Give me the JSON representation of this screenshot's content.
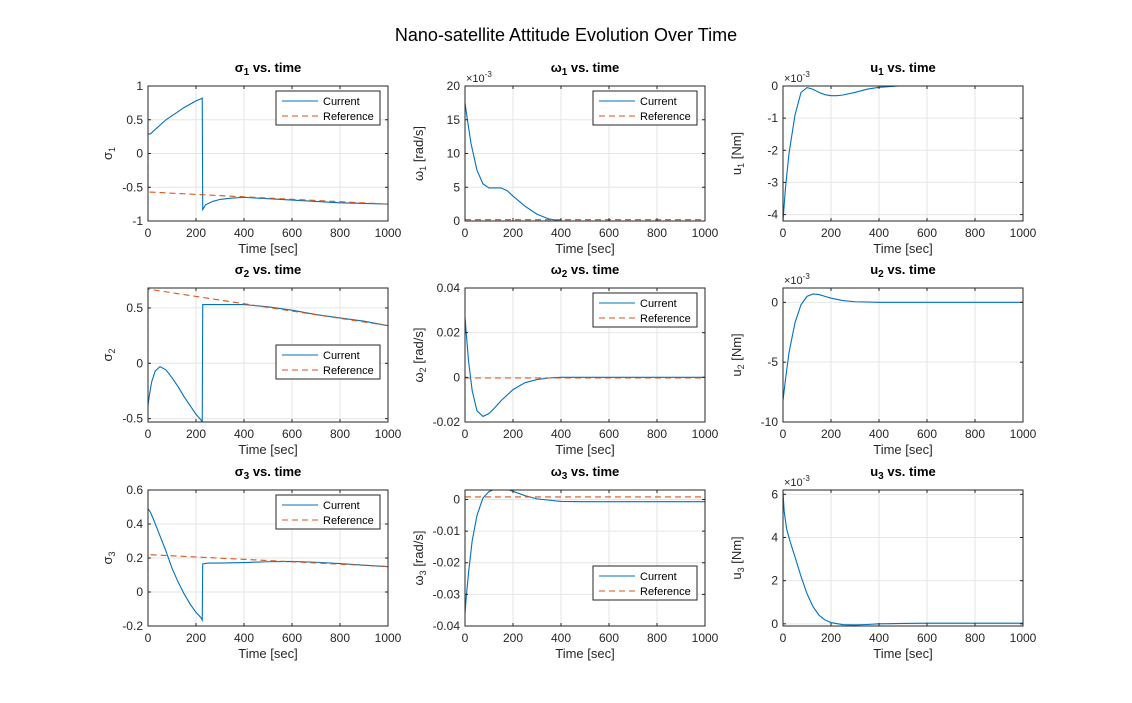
{
  "figure": {
    "title": "Nano-satellite Attitude Evolution Over Time"
  },
  "colors": {
    "current": "#0072BD",
    "reference": "#D95319",
    "grid": "#e6e6e6",
    "axis": "#262626"
  },
  "legend": {
    "current": "Current",
    "reference": "Reference"
  },
  "chart_data": [
    {
      "type": "line",
      "title": "σ_1 vs. time",
      "xlabel": "Time [sec]",
      "ylabel": "σ_1",
      "xlim": [
        0,
        1000
      ],
      "ylim": [
        -1,
        1
      ],
      "xticks": [
        0,
        200,
        400,
        600,
        800,
        1000
      ],
      "yticks": [
        -1,
        -0.5,
        0,
        0.5,
        1
      ],
      "ytick_labels": [
        "-1",
        "-0.5",
        "0",
        "0.5",
        "1"
      ],
      "exponent": "",
      "legend": "top-right",
      "series": [
        {
          "name": "Current",
          "x": [
            0,
            10,
            25,
            50,
            75,
            100,
            125,
            150,
            175,
            200,
            220,
            226,
            228,
            240,
            270,
            300,
            350,
            400,
            500,
            600,
            700,
            800,
            900,
            1000
          ],
          "y": [
            0.29,
            0.29,
            0.34,
            0.42,
            0.5,
            0.56,
            0.62,
            0.68,
            0.73,
            0.78,
            0.81,
            0.82,
            -0.83,
            -0.76,
            -0.71,
            -0.68,
            -0.66,
            -0.65,
            -0.67,
            -0.69,
            -0.71,
            -0.73,
            -0.74,
            -0.75
          ]
        },
        {
          "name": "Reference",
          "x": [
            0,
            0.1,
            1000
          ],
          "y": [
            0,
            -0.57,
            -0.75
          ]
        }
      ]
    },
    {
      "type": "line",
      "title": "ω_1 vs. time",
      "xlabel": "Time [sec]",
      "ylabel": "ω_1 [rad/s]",
      "xlim": [
        0,
        1000
      ],
      "ylim": [
        0,
        0.02
      ],
      "xticks": [
        0,
        200,
        400,
        600,
        800,
        1000
      ],
      "yticks": [
        0,
        0.005,
        0.01,
        0.015,
        0.02
      ],
      "ytick_labels": [
        "0",
        "5",
        "10",
        "15",
        "20"
      ],
      "exponent": "-3",
      "legend": "top-right",
      "series": [
        {
          "name": "Current",
          "x": [
            0,
            10,
            25,
            50,
            75,
            100,
            125,
            150,
            175,
            200,
            250,
            300,
            350,
            400,
            450,
            500,
            600,
            700,
            800,
            900,
            1000
          ],
          "y": [
            0.0175,
            0.015,
            0.0115,
            0.0075,
            0.0055,
            0.0049,
            0.0049,
            0.0049,
            0.0045,
            0.0037,
            0.0022,
            0.001,
            0.0003,
            0.0,
            0.0,
            0.0,
            0.0,
            0.0,
            0.0,
            0.0,
            0.0
          ]
        },
        {
          "name": "Reference",
          "x": [
            0,
            1000
          ],
          "y": [
            0.0002,
            0.0002
          ]
        }
      ]
    },
    {
      "type": "line",
      "title": "u_1 vs. time",
      "xlabel": "Time [sec]",
      "ylabel": "u_1 [Nm]",
      "xlim": [
        0,
        1000
      ],
      "ylim": [
        -0.0042,
        0
      ],
      "xticks": [
        0,
        200,
        400,
        600,
        800,
        1000
      ],
      "yticks": [
        -0.004,
        -0.003,
        -0.002,
        -0.001,
        0
      ],
      "ytick_labels": [
        "-4",
        "-3",
        "-2",
        "-1",
        "0"
      ],
      "exponent": "-3",
      "legend": "none",
      "series": [
        {
          "name": "Current",
          "x": [
            0,
            10,
            25,
            50,
            75,
            100,
            125,
            150,
            175,
            200,
            225,
            250,
            300,
            350,
            400,
            500,
            600,
            700,
            800,
            900,
            1000
          ],
          "y": [
            -0.0042,
            -0.0032,
            -0.0021,
            -0.0009,
            -0.0002,
            -5e-05,
            -0.0001,
            -0.0002,
            -0.00027,
            -0.0003,
            -0.0003,
            -0.00028,
            -0.0002,
            -0.0001,
            -4e-05,
            1e-05,
            0.0,
            0.0,
            0.0,
            0.0,
            0.0
          ]
        }
      ]
    },
    {
      "type": "line",
      "title": "σ_2 vs. time",
      "xlabel": "Time [sec]",
      "ylabel": "σ_2",
      "xlim": [
        0,
        1000
      ],
      "ylim": [
        -0.53,
        0.68
      ],
      "xticks": [
        0,
        200,
        400,
        600,
        800,
        1000
      ],
      "yticks": [
        -0.5,
        0,
        0.5
      ],
      "ytick_labels": [
        "-0.5",
        "0",
        "0.5"
      ],
      "exponent": "",
      "legend": "right",
      "series": [
        {
          "name": "Current",
          "x": [
            0,
            5,
            15,
            30,
            50,
            75,
            100,
            125,
            150,
            175,
            200,
            220,
            226,
            228,
            260,
            300,
            400,
            500,
            600,
            700,
            800,
            900,
            1000
          ],
          "y": [
            -0.38,
            -0.3,
            -0.17,
            -0.07,
            -0.03,
            -0.06,
            -0.13,
            -0.21,
            -0.3,
            -0.38,
            -0.46,
            -0.51,
            -0.53,
            0.53,
            0.53,
            0.53,
            0.53,
            0.51,
            0.48,
            0.44,
            0.41,
            0.38,
            0.34
          ]
        },
        {
          "name": "Reference",
          "x": [
            0,
            0.1,
            1000
          ],
          "y": [
            0,
            0.67,
            0.34
          ]
        }
      ]
    },
    {
      "type": "line",
      "title": "ω_2 vs. time",
      "xlabel": "Time [sec]",
      "ylabel": "ω_2 [rad/s]",
      "xlim": [
        0,
        1000
      ],
      "ylim": [
        -0.02,
        0.04
      ],
      "xticks": [
        0,
        200,
        400,
        600,
        800,
        1000
      ],
      "yticks": [
        -0.02,
        0,
        0.02,
        0.04
      ],
      "ytick_labels": [
        "-0.02",
        "0",
        "0.02",
        "0.04"
      ],
      "exponent": "",
      "legend": "top-right",
      "series": [
        {
          "name": "Current",
          "x": [
            0,
            5,
            15,
            30,
            50,
            75,
            100,
            125,
            150,
            200,
            250,
            300,
            350,
            400,
            500,
            600,
            700,
            800,
            900,
            1000
          ],
          "y": [
            0.027,
            0.02,
            0.007,
            -0.006,
            -0.015,
            -0.0175,
            -0.0162,
            -0.0135,
            -0.0105,
            -0.0055,
            -0.0024,
            -0.001,
            -0.0003,
            0.0,
            0.0,
            0.0,
            0.0,
            0.0,
            0.0,
            0.0
          ]
        },
        {
          "name": "Reference",
          "x": [
            0,
            1000
          ],
          "y": [
            -0.0003,
            -0.0003
          ]
        }
      ]
    },
    {
      "type": "line",
      "title": "u_2 vs. time",
      "xlabel": "Time [sec]",
      "ylabel": "u_2 [Nm]",
      "xlim": [
        0,
        1000
      ],
      "ylim": [
        -0.01,
        0.0012
      ],
      "xticks": [
        0,
        200,
        400,
        600,
        800,
        1000
      ],
      "yticks": [
        -0.01,
        -0.005,
        0
      ],
      "ytick_labels": [
        "-10",
        "-5",
        "0"
      ],
      "exponent": "-3",
      "legend": "none",
      "series": [
        {
          "name": "Current",
          "x": [
            0,
            10,
            25,
            50,
            75,
            100,
            125,
            150,
            175,
            200,
            250,
            300,
            400,
            500,
            600,
            700,
            800,
            900,
            1000
          ],
          "y": [
            -0.0082,
            -0.0065,
            -0.0042,
            -0.0017,
            -0.0002,
            0.0005,
            0.0007,
            0.00065,
            0.0005,
            0.00035,
            0.00015,
            5e-05,
            0.0,
            0.0,
            0.0,
            0.0,
            0.0,
            0.0,
            0.0
          ]
        }
      ]
    },
    {
      "type": "line",
      "title": "σ_3 vs. time",
      "xlabel": "Time [sec]",
      "ylabel": "σ_3",
      "xlim": [
        0,
        1000
      ],
      "ylim": [
        -0.2,
        0.6
      ],
      "xticks": [
        0,
        200,
        400,
        600,
        800,
        1000
      ],
      "yticks": [
        -0.2,
        0,
        0.2,
        0.4,
        0.6
      ],
      "ytick_labels": [
        "-0.2",
        "0",
        "0.2",
        "0.4",
        "0.6"
      ],
      "exponent": "",
      "legend": "top-right",
      "series": [
        {
          "name": "Current",
          "x": [
            0,
            10,
            25,
            50,
            75,
            100,
            125,
            150,
            175,
            200,
            220,
            226,
            228,
            250,
            300,
            400,
            500,
            600,
            700,
            800,
            900,
            1000
          ],
          "y": [
            0.49,
            0.47,
            0.42,
            0.33,
            0.24,
            0.14,
            0.06,
            -0.01,
            -0.07,
            -0.12,
            -0.15,
            -0.165,
            0.165,
            0.17,
            0.17,
            0.173,
            0.178,
            0.18,
            0.175,
            0.167,
            0.158,
            0.149
          ]
        },
        {
          "name": "Reference",
          "x": [
            0,
            0.1,
            1000
          ],
          "y": [
            0,
            0.22,
            0.15
          ]
        }
      ]
    },
    {
      "type": "line",
      "title": "ω_3 vs. time",
      "xlabel": "Time [sec]",
      "ylabel": "ω_3 [rad/s]",
      "xlim": [
        0,
        1000
      ],
      "ylim": [
        -0.04,
        0.003
      ],
      "xticks": [
        0,
        200,
        400,
        600,
        800,
        1000
      ],
      "yticks": [
        -0.04,
        -0.03,
        -0.02,
        -0.01,
        0
      ],
      "ytick_labels": [
        "-0.04",
        "-0.03",
        "-0.02",
        "-0.01",
        "0"
      ],
      "exponent": "",
      "legend": "right",
      "series": [
        {
          "name": "Current",
          "x": [
            0,
            5,
            15,
            30,
            50,
            75,
            100,
            125,
            150,
            175,
            200,
            250,
            300,
            400,
            500,
            600,
            700,
            800,
            900,
            1000
          ],
          "y": [
            -0.036,
            -0.031,
            -0.023,
            -0.013,
            -0.005,
            0.0005,
            0.0025,
            0.0033,
            0.0035,
            0.0032,
            0.0026,
            0.0012,
            0.0002,
            -0.0006,
            -0.0007,
            -0.0007,
            -0.0007,
            -0.0007,
            -0.0007,
            -0.0007
          ]
        },
        {
          "name": "Reference",
          "x": [
            0,
            1000
          ],
          "y": [
            0.0008,
            0.0008
          ]
        }
      ]
    },
    {
      "type": "line",
      "title": "u_3 vs. time",
      "xlabel": "Time [sec]",
      "ylabel": "u_3 [Nm]",
      "xlim": [
        0,
        1000
      ],
      "ylim": [
        -0.0001,
        0.0062
      ],
      "xticks": [
        0,
        200,
        400,
        600,
        800,
        1000
      ],
      "yticks": [
        0,
        0.002,
        0.004,
        0.006
      ],
      "ytick_labels": [
        "0",
        "2",
        "4",
        "6"
      ],
      "exponent": "-3",
      "legend": "none",
      "series": [
        {
          "name": "Current",
          "x": [
            0,
            5,
            15,
            30,
            50,
            75,
            100,
            125,
            150,
            175,
            200,
            250,
            300,
            350,
            400,
            500,
            600,
            700,
            800,
            900,
            1000
          ],
          "y": [
            0.0061,
            0.0052,
            0.0044,
            0.0038,
            0.0031,
            0.0022,
            0.0014,
            0.0008,
            0.0004,
            0.00018,
            6e-05,
            -4e-05,
            -5e-05,
            -3e-05,
            0.0,
            2e-05,
            3e-05,
            3e-05,
            3e-05,
            3e-05,
            3e-05
          ]
        }
      ]
    }
  ]
}
